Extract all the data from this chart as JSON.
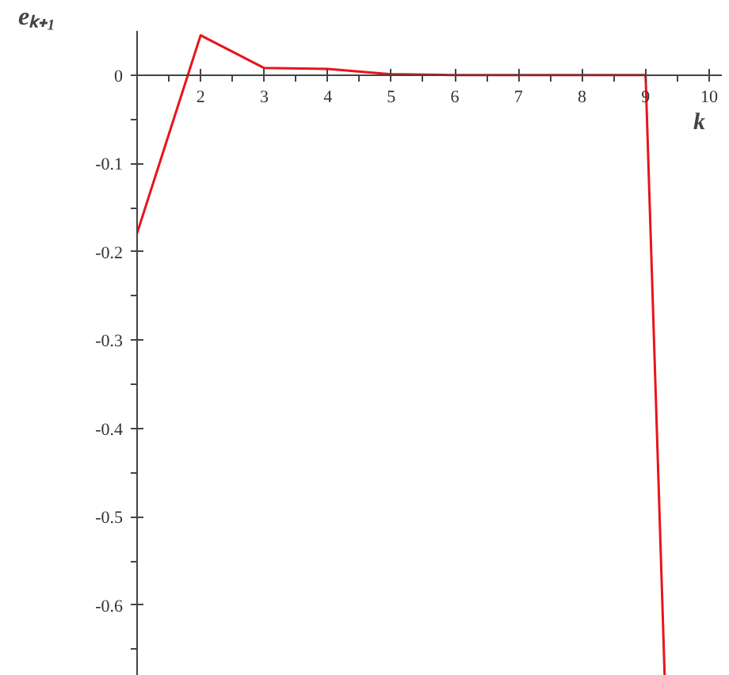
{
  "chart_data": {
    "type": "line",
    "xlabel": "k",
    "ylabel": "eₖ₊₁",
    "x": [
      1,
      2,
      3,
      4,
      5,
      6,
      7,
      8,
      9,
      9.3
    ],
    "series": [
      {
        "color": "#e8141c",
        "values": [
          -0.179,
          0.045,
          0.008,
          0.007,
          0.001,
          0,
          0,
          0,
          0,
          -0.68
        ]
      }
    ],
    "xlim": [
      1,
      10.2
    ],
    "ylim": [
      -0.68,
      0.05
    ],
    "xticks": [
      2,
      3,
      4,
      5,
      6,
      7,
      8,
      9,
      10
    ],
    "yticks": [
      0,
      -0.1,
      -0.2,
      -0.3,
      -0.4,
      -0.5,
      -0.6
    ],
    "grid": false,
    "marker": "none",
    "line_style": "solid"
  }
}
